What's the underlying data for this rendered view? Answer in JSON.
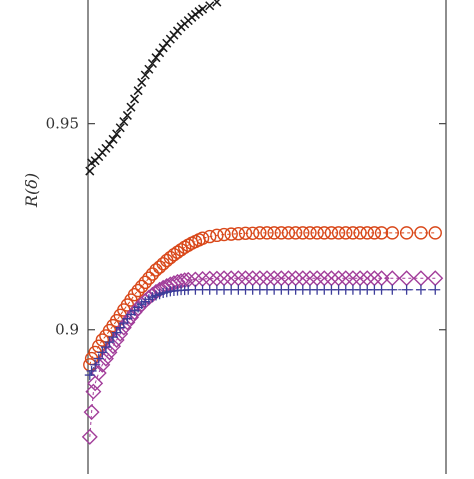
{
  "chart_data": {
    "type": "scatter",
    "title": "",
    "xlabel": "",
    "ylabel": "R(δ)",
    "ylim": [
      0.865,
      0.98
    ],
    "xlim": [
      0,
      100
    ],
    "grid": false,
    "legend": "none",
    "yticks": [
      {
        "value": 0.9,
        "label": "0.9"
      },
      {
        "value": 0.95,
        "label": "0.95"
      }
    ],
    "series": [
      {
        "marker": "x",
        "color": "#1a1a1a",
        "points": [
          [
            0.5,
            0.9385
          ],
          [
            1,
            0.9405
          ],
          [
            2,
            0.941
          ],
          [
            3,
            0.942
          ],
          [
            4,
            0.943
          ],
          [
            5,
            0.944
          ],
          [
            6,
            0.945
          ],
          [
            7,
            0.9462
          ],
          [
            8,
            0.9475
          ],
          [
            9,
            0.949
          ],
          [
            10,
            0.9505
          ],
          [
            11,
            0.952
          ],
          [
            12,
            0.954
          ],
          [
            13,
            0.956
          ],
          [
            14,
            0.958
          ],
          [
            15,
            0.96
          ],
          [
            16,
            0.9618
          ],
          [
            17,
            0.9632
          ],
          [
            18,
            0.9646
          ],
          [
            19,
            0.966
          ],
          [
            20,
            0.9672
          ],
          [
            21,
            0.9684
          ],
          [
            22,
            0.9695
          ],
          [
            23,
            0.9705
          ],
          [
            24,
            0.9715
          ],
          [
            25,
            0.9725
          ],
          [
            26,
            0.9735
          ],
          [
            27,
            0.9742
          ],
          [
            28,
            0.975
          ],
          [
            29,
            0.9758
          ],
          [
            30,
            0.9765
          ],
          [
            31,
            0.9772
          ],
          [
            32,
            0.9778
          ],
          [
            34,
            0.9786
          ],
          [
            36,
            0.9795
          ]
        ]
      },
      {
        "marker": "circle",
        "color": "#d9481a",
        "points": [
          [
            0.5,
            0.8915
          ],
          [
            1,
            0.893
          ],
          [
            2,
            0.8945
          ],
          [
            3,
            0.896
          ],
          [
            4,
            0.8975
          ],
          [
            5,
            0.8985
          ],
          [
            6,
            0.8998
          ],
          [
            7,
            0.901
          ],
          [
            8,
            0.9022
          ],
          [
            9,
            0.9035
          ],
          [
            10,
            0.9048
          ],
          [
            11,
            0.906
          ],
          [
            12,
            0.9072
          ],
          [
            13,
            0.9085
          ],
          [
            14,
            0.9095
          ],
          [
            15,
            0.9105
          ],
          [
            16,
            0.9115
          ],
          [
            17,
            0.9125
          ],
          [
            18,
            0.9135
          ],
          [
            19,
            0.9145
          ],
          [
            20,
            0.9152
          ],
          [
            21,
            0.916
          ],
          [
            22,
            0.9168
          ],
          [
            23,
            0.9175
          ],
          [
            24,
            0.9182
          ],
          [
            25,
            0.9188
          ],
          [
            26,
            0.9194
          ],
          [
            27,
            0.92
          ],
          [
            28,
            0.9205
          ],
          [
            29,
            0.921
          ],
          [
            30,
            0.9214
          ],
          [
            31,
            0.9218
          ],
          [
            32,
            0.9222
          ],
          [
            34,
            0.9226
          ],
          [
            36,
            0.9229
          ],
          [
            38,
            0.9231
          ],
          [
            40,
            0.9232
          ],
          [
            42,
            0.9233
          ],
          [
            44,
            0.9234
          ],
          [
            46,
            0.9234
          ],
          [
            48,
            0.9235
          ],
          [
            50,
            0.9235
          ],
          [
            52,
            0.9235
          ],
          [
            54,
            0.9235
          ],
          [
            56,
            0.9235
          ],
          [
            58,
            0.9235
          ],
          [
            60,
            0.9235
          ],
          [
            62,
            0.9235
          ],
          [
            64,
            0.9235
          ],
          [
            66,
            0.9235
          ],
          [
            68,
            0.9235
          ],
          [
            70,
            0.9235
          ],
          [
            72,
            0.9235
          ],
          [
            74,
            0.9235
          ],
          [
            76,
            0.9235
          ],
          [
            78,
            0.9235
          ],
          [
            80,
            0.9235
          ],
          [
            82,
            0.9235
          ],
          [
            85,
            0.9235
          ],
          [
            89,
            0.9235
          ],
          [
            93,
            0.9235
          ],
          [
            97,
            0.9235
          ]
        ]
      },
      {
        "marker": "diamond",
        "color": "#a23d9a",
        "points": [
          [
            0.5,
            0.874
          ],
          [
            1,
            0.88
          ],
          [
            1.5,
            0.885
          ],
          [
            2,
            0.887
          ],
          [
            3,
            0.8895
          ],
          [
            4,
            0.8915
          ],
          [
            5,
            0.893
          ],
          [
            6,
            0.8945
          ],
          [
            7,
            0.896
          ],
          [
            8,
            0.8975
          ],
          [
            9,
            0.899
          ],
          [
            10,
            0.9005
          ],
          [
            11,
            0.9018
          ],
          [
            12,
            0.903
          ],
          [
            13,
            0.9042
          ],
          [
            14,
            0.9052
          ],
          [
            15,
            0.9062
          ],
          [
            16,
            0.907
          ],
          [
            17,
            0.9078
          ],
          [
            18,
            0.9085
          ],
          [
            19,
            0.9092
          ],
          [
            20,
            0.9097
          ],
          [
            21,
            0.9102
          ],
          [
            22,
            0.9106
          ],
          [
            23,
            0.911
          ],
          [
            24,
            0.9113
          ],
          [
            25,
            0.9116
          ],
          [
            26,
            0.9118
          ],
          [
            27,
            0.912
          ],
          [
            28,
            0.9121
          ],
          [
            30,
            0.9122
          ],
          [
            32,
            0.9123
          ],
          [
            34,
            0.9124
          ],
          [
            36,
            0.9124
          ],
          [
            38,
            0.9125
          ],
          [
            40,
            0.9125
          ],
          [
            42,
            0.9125
          ],
          [
            44,
            0.9125
          ],
          [
            46,
            0.9125
          ],
          [
            48,
            0.9125
          ],
          [
            50,
            0.9125
          ],
          [
            52,
            0.9125
          ],
          [
            54,
            0.9125
          ],
          [
            56,
            0.9125
          ],
          [
            58,
            0.9125
          ],
          [
            60,
            0.9125
          ],
          [
            62,
            0.9125
          ],
          [
            64,
            0.9125
          ],
          [
            66,
            0.9125
          ],
          [
            68,
            0.9125
          ],
          [
            70,
            0.9125
          ],
          [
            72,
            0.9125
          ],
          [
            74,
            0.9125
          ],
          [
            76,
            0.9125
          ],
          [
            78,
            0.9125
          ],
          [
            80,
            0.9125
          ],
          [
            82,
            0.9125
          ],
          [
            85,
            0.9125
          ],
          [
            89,
            0.9125
          ],
          [
            93,
            0.9125
          ],
          [
            97,
            0.9125
          ]
        ]
      },
      {
        "marker": "plus",
        "color": "#3d3d9a",
        "points": [
          [
            0.5,
            0.889
          ],
          [
            1,
            0.89
          ],
          [
            2,
            0.8915
          ],
          [
            3,
            0.893
          ],
          [
            4,
            0.8945
          ],
          [
            5,
            0.8958
          ],
          [
            6,
            0.897
          ],
          [
            7,
            0.8982
          ],
          [
            8,
            0.8993
          ],
          [
            9,
            0.9005
          ],
          [
            10,
            0.9016
          ],
          [
            11,
            0.9027
          ],
          [
            12,
            0.9037
          ],
          [
            13,
            0.9046
          ],
          [
            14,
            0.9054
          ],
          [
            15,
            0.9062
          ],
          [
            16,
            0.9068
          ],
          [
            17,
            0.9074
          ],
          [
            18,
            0.9079
          ],
          [
            19,
            0.9083
          ],
          [
            20,
            0.9086
          ],
          [
            21,
            0.9089
          ],
          [
            22,
            0.9091
          ],
          [
            23,
            0.9093
          ],
          [
            24,
            0.9094
          ],
          [
            25,
            0.9095
          ],
          [
            26,
            0.9096
          ],
          [
            27,
            0.9096
          ],
          [
            28,
            0.9097
          ],
          [
            30,
            0.9097
          ],
          [
            32,
            0.9097
          ],
          [
            34,
            0.9097
          ],
          [
            36,
            0.9097
          ],
          [
            38,
            0.9097
          ],
          [
            40,
            0.9097
          ],
          [
            42,
            0.9097
          ],
          [
            44,
            0.9097
          ],
          [
            46,
            0.9097
          ],
          [
            48,
            0.9097
          ],
          [
            50,
            0.9097
          ],
          [
            52,
            0.9097
          ],
          [
            54,
            0.9097
          ],
          [
            56,
            0.9097
          ],
          [
            58,
            0.9097
          ],
          [
            60,
            0.9097
          ],
          [
            62,
            0.9097
          ],
          [
            64,
            0.9097
          ],
          [
            66,
            0.9097
          ],
          [
            68,
            0.9097
          ],
          [
            70,
            0.9097
          ],
          [
            72,
            0.9097
          ],
          [
            74,
            0.9097
          ],
          [
            76,
            0.9097
          ],
          [
            78,
            0.9097
          ],
          [
            80,
            0.9097
          ],
          [
            82,
            0.9097
          ],
          [
            85,
            0.9097
          ],
          [
            89,
            0.9097
          ],
          [
            93,
            0.9097
          ],
          [
            97,
            0.9097
          ]
        ]
      }
    ]
  }
}
